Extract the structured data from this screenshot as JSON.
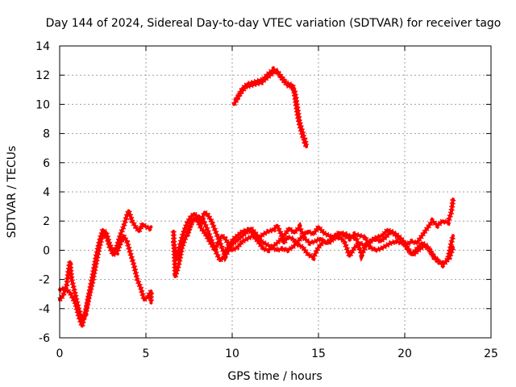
{
  "chart_data": {
    "type": "scatter",
    "title": "Day 144 of 2024, Sidereal Day-to-day VTEC variation (SDTVAR) for receiver tago",
    "xlabel": "GPS time / hours",
    "ylabel": "SDTVAR / TECUs",
    "xlim": [
      0,
      25
    ],
    "ylim": [
      -6,
      14
    ],
    "xticks": [
      0,
      5,
      10,
      15,
      20,
      25
    ],
    "yticks": [
      -6,
      -4,
      -2,
      0,
      2,
      4,
      6,
      8,
      10,
      12,
      14
    ],
    "grid": true,
    "marker": "plus",
    "color": "#ff0000",
    "series": [
      {
        "name": "trace-1",
        "points": [
          [
            0.0,
            -2.7
          ],
          [
            0.3,
            -2.6
          ],
          [
            0.6,
            -2.9
          ],
          [
            0.9,
            -3.6
          ],
          [
            1.1,
            -4.5
          ],
          [
            1.3,
            -5.2
          ],
          [
            1.5,
            -4.2
          ],
          [
            1.7,
            -3.0
          ],
          [
            1.9,
            -1.8
          ],
          [
            2.1,
            -0.5
          ],
          [
            2.3,
            0.6
          ],
          [
            2.5,
            1.4
          ],
          [
            2.7,
            1.2
          ],
          [
            2.9,
            0.4
          ],
          [
            3.1,
            -0.1
          ],
          [
            3.3,
            0.2
          ],
          [
            3.5,
            1.0
          ],
          [
            3.7,
            1.6
          ],
          [
            3.9,
            2.4
          ],
          [
            4.0,
            2.7
          ],
          [
            4.2,
            2.0
          ],
          [
            4.4,
            1.6
          ],
          [
            4.6,
            1.3
          ],
          [
            4.8,
            1.8
          ],
          [
            5.0,
            1.6
          ],
          [
            5.2,
            1.5
          ],
          [
            5.3,
            1.6
          ]
        ]
      },
      {
        "name": "trace-2",
        "points": [
          [
            0.0,
            -3.4
          ],
          [
            0.2,
            -3.1
          ],
          [
            0.4,
            -2.4
          ],
          [
            0.5,
            -1.5
          ],
          [
            0.6,
            -0.8
          ],
          [
            0.7,
            -2.0
          ],
          [
            0.9,
            -3.0
          ],
          [
            1.1,
            -4.0
          ],
          [
            1.3,
            -4.8
          ],
          [
            1.5,
            -4.4
          ],
          [
            1.7,
            -3.2
          ],
          [
            1.9,
            -2.2
          ],
          [
            2.1,
            -1.0
          ],
          [
            2.3,
            0.2
          ],
          [
            2.5,
            1.1
          ],
          [
            2.7,
            1.0
          ],
          [
            2.9,
            0.2
          ],
          [
            3.1,
            -0.3
          ],
          [
            3.3,
            -0.2
          ],
          [
            3.5,
            0.4
          ],
          [
            3.7,
            1.0
          ],
          [
            3.9,
            0.6
          ],
          [
            4.1,
            -0.2
          ],
          [
            4.3,
            -1.0
          ],
          [
            4.5,
            -2.0
          ],
          [
            4.7,
            -2.6
          ],
          [
            4.9,
            -3.4
          ],
          [
            5.1,
            -3.2
          ],
          [
            5.3,
            -2.8
          ],
          [
            5.3,
            -3.6
          ]
        ]
      },
      {
        "name": "trace-3",
        "points": [
          [
            6.6,
            1.3
          ],
          [
            6.7,
            -1.8
          ],
          [
            6.9,
            -1.0
          ],
          [
            7.1,
            0.2
          ],
          [
            7.3,
            0.9
          ],
          [
            7.5,
            1.5
          ],
          [
            7.7,
            2.0
          ],
          [
            7.9,
            2.2
          ],
          [
            8.1,
            2.3
          ],
          [
            8.3,
            2.1
          ],
          [
            8.5,
            1.6
          ],
          [
            8.7,
            1.0
          ],
          [
            8.9,
            0.4
          ],
          [
            9.1,
            -0.2
          ],
          [
            9.3,
            -0.7
          ],
          [
            9.5,
            -0.5
          ],
          [
            9.7,
            0.1
          ],
          [
            9.9,
            0.5
          ],
          [
            10.1,
            0.8
          ],
          [
            10.3,
            1.0
          ],
          [
            10.6,
            1.3
          ],
          [
            10.9,
            1.4
          ],
          [
            11.2,
            1.2
          ],
          [
            11.5,
            0.8
          ],
          [
            11.8,
            1.1
          ],
          [
            12.1,
            1.3
          ],
          [
            12.4,
            1.4
          ],
          [
            12.6,
            1.7
          ],
          [
            12.8,
            1.2
          ],
          [
            13.0,
            0.5
          ],
          [
            13.2,
            0.9
          ],
          [
            13.5,
            0.8
          ],
          [
            13.8,
            0.4
          ],
          [
            14.1,
            0.2
          ],
          [
            14.4,
            -0.3
          ],
          [
            14.7,
            -0.5
          ],
          [
            15.0,
            0.2
          ],
          [
            15.3,
            0.6
          ],
          [
            15.6,
            0.5
          ],
          [
            15.9,
            0.8
          ],
          [
            16.2,
            0.9
          ],
          [
            16.5,
            0.6
          ],
          [
            16.8,
            -0.4
          ],
          [
            17.1,
            0.2
          ],
          [
            17.4,
            0.5
          ],
          [
            17.7,
            0.3
          ],
          [
            18.0,
            0.6
          ],
          [
            18.3,
            0.8
          ],
          [
            18.6,
            0.6
          ],
          [
            18.9,
            0.9
          ],
          [
            19.2,
            1.3
          ],
          [
            19.5,
            1.1
          ],
          [
            19.8,
            0.8
          ],
          [
            20.1,
            0.3
          ],
          [
            20.4,
            -0.3
          ],
          [
            20.7,
            0.1
          ],
          [
            21.0,
            0.5
          ],
          [
            21.3,
            0.3
          ],
          [
            21.6,
            -0.3
          ],
          [
            21.9,
            -0.7
          ],
          [
            22.2,
            -1.0
          ],
          [
            22.5,
            -0.6
          ],
          [
            22.7,
            0.5
          ],
          [
            22.8,
            1.0
          ]
        ]
      },
      {
        "name": "trace-4",
        "points": [
          [
            6.6,
            0.6
          ],
          [
            6.8,
            -0.6
          ],
          [
            7.0,
            0.5
          ],
          [
            7.2,
            1.3
          ],
          [
            7.4,
            1.9
          ],
          [
            7.6,
            2.3
          ],
          [
            7.8,
            2.5
          ],
          [
            8.0,
            2.3
          ],
          [
            8.2,
            2.0
          ],
          [
            8.4,
            2.6
          ],
          [
            8.6,
            2.4
          ],
          [
            8.8,
            2.0
          ],
          [
            9.0,
            1.4
          ],
          [
            9.2,
            0.8
          ],
          [
            9.4,
            0.2
          ],
          [
            9.6,
            -0.4
          ],
          [
            9.8,
            0.0
          ],
          [
            10.0,
            0.4
          ],
          [
            10.2,
            0.6
          ],
          [
            10.5,
            0.9
          ],
          [
            10.8,
            1.2
          ],
          [
            11.1,
            1.5
          ],
          [
            11.4,
            1.1
          ],
          [
            11.7,
            0.6
          ],
          [
            12.0,
            0.4
          ],
          [
            12.3,
            0.2
          ],
          [
            12.6,
            0.0
          ],
          [
            12.9,
            0.1
          ],
          [
            13.2,
            0.0
          ],
          [
            13.5,
            0.2
          ],
          [
            13.8,
            0.6
          ],
          [
            14.1,
            1.0
          ],
          [
            14.4,
            1.3
          ],
          [
            14.7,
            1.1
          ],
          [
            15.0,
            1.6
          ],
          [
            15.3,
            1.2
          ],
          [
            15.6,
            1.0
          ],
          [
            15.9,
            0.9
          ],
          [
            16.2,
            1.2
          ],
          [
            16.5,
            1.0
          ],
          [
            16.8,
            0.8
          ],
          [
            17.1,
            1.1
          ],
          [
            17.4,
            1.0
          ],
          [
            17.7,
            0.9
          ],
          [
            18.0,
            0.2
          ],
          [
            18.3,
            0.0
          ],
          [
            18.6,
            0.1
          ],
          [
            18.9,
            0.3
          ],
          [
            19.2,
            0.5
          ],
          [
            19.5,
            0.6
          ],
          [
            19.8,
            0.5
          ],
          [
            20.1,
            0.4
          ],
          [
            20.4,
            0.6
          ],
          [
            20.7,
            0.5
          ],
          [
            21.0,
            1.0
          ],
          [
            21.3,
            1.5
          ],
          [
            21.6,
            2.0
          ],
          [
            21.9,
            1.7
          ],
          [
            22.2,
            2.0
          ],
          [
            22.5,
            1.9
          ],
          [
            22.7,
            2.6
          ],
          [
            22.8,
            3.5
          ]
        ]
      },
      {
        "name": "trace-5",
        "points": [
          [
            7.4,
            1.0
          ],
          [
            7.6,
            1.8
          ],
          [
            7.8,
            2.2
          ],
          [
            8.0,
            2.0
          ],
          [
            8.2,
            1.5
          ],
          [
            8.4,
            1.2
          ],
          [
            8.6,
            0.8
          ],
          [
            8.8,
            0.4
          ],
          [
            9.0,
            0.0
          ],
          [
            9.2,
            0.6
          ],
          [
            9.4,
            1.0
          ],
          [
            9.6,
            0.8
          ],
          [
            9.8,
            0.4
          ],
          [
            10.0,
            0.0
          ],
          [
            10.3,
            0.2
          ],
          [
            10.6,
            0.6
          ],
          [
            10.9,
            0.8
          ],
          [
            11.2,
            1.0
          ],
          [
            11.5,
            0.6
          ],
          [
            11.8,
            0.1
          ],
          [
            12.1,
            0.0
          ],
          [
            12.4,
            0.3
          ],
          [
            12.7,
            0.6
          ],
          [
            13.0,
            1.0
          ],
          [
            13.3,
            1.5
          ],
          [
            13.6,
            1.2
          ],
          [
            13.9,
            1.6
          ],
          [
            14.2,
            0.8
          ],
          [
            14.5,
            0.5
          ],
          [
            14.8,
            0.6
          ],
          [
            15.1,
            0.8
          ],
          [
            15.4,
            0.5
          ],
          [
            15.7,
            0.7
          ],
          [
            16.0,
            1.0
          ],
          [
            16.3,
            1.2
          ],
          [
            16.6,
            1.1
          ],
          [
            16.9,
            0.9
          ],
          [
            17.2,
            0.8
          ],
          [
            17.5,
            -0.3
          ],
          [
            17.8,
            0.4
          ],
          [
            18.1,
            0.7
          ],
          [
            18.4,
            0.9
          ],
          [
            18.7,
            1.0
          ],
          [
            19.0,
            1.4
          ],
          [
            19.3,
            1.2
          ],
          [
            19.6,
            0.9
          ],
          [
            19.9,
            0.6
          ],
          [
            20.2,
            0.0
          ],
          [
            20.5,
            -0.3
          ],
          [
            20.8,
            0.0
          ],
          [
            21.1,
            0.3
          ],
          [
            21.4,
            0.1
          ],
          [
            21.7,
            -0.5
          ],
          [
            22.0,
            -0.8
          ],
          [
            22.3,
            -0.9
          ],
          [
            22.6,
            -0.5
          ],
          [
            22.8,
            0.2
          ]
        ]
      },
      {
        "name": "trace-6",
        "points": [
          [
            10.1,
            10.0
          ],
          [
            10.3,
            10.4
          ],
          [
            10.6,
            11.1
          ],
          [
            10.9,
            11.4
          ],
          [
            11.2,
            11.5
          ],
          [
            11.5,
            11.6
          ],
          [
            11.8,
            11.7
          ],
          [
            12.0,
            12.0
          ],
          [
            12.2,
            12.2
          ],
          [
            12.4,
            12.4
          ],
          [
            12.6,
            12.3
          ],
          [
            12.8,
            11.9
          ],
          [
            13.0,
            11.6
          ],
          [
            13.2,
            11.3
          ],
          [
            13.4,
            11.2
          ],
          [
            13.6,
            11.0
          ],
          [
            13.7,
            10.4
          ],
          [
            13.8,
            9.6
          ],
          [
            13.9,
            8.8
          ],
          [
            14.0,
            8.4
          ],
          [
            14.1,
            8.0
          ],
          [
            14.2,
            7.4
          ],
          [
            14.3,
            7.1
          ]
        ]
      },
      {
        "name": "trace-7",
        "points": [
          [
            10.2,
            10.3
          ],
          [
            10.5,
            10.8
          ],
          [
            10.8,
            11.2
          ],
          [
            11.1,
            11.3
          ],
          [
            11.4,
            11.4
          ],
          [
            11.7,
            11.5
          ],
          [
            12.0,
            11.8
          ],
          [
            12.2,
            12.0
          ],
          [
            12.5,
            12.3
          ],
          [
            12.7,
            12.1
          ],
          [
            12.9,
            11.8
          ],
          [
            13.1,
            11.5
          ],
          [
            13.3,
            11.4
          ],
          [
            13.5,
            11.3
          ],
          [
            13.6,
            10.8
          ],
          [
            13.7,
            10.0
          ],
          [
            13.8,
            9.2
          ],
          [
            13.9,
            8.6
          ],
          [
            14.0,
            8.2
          ],
          [
            14.1,
            7.8
          ],
          [
            14.2,
            7.6
          ],
          [
            14.3,
            7.2
          ]
        ]
      }
    ]
  }
}
